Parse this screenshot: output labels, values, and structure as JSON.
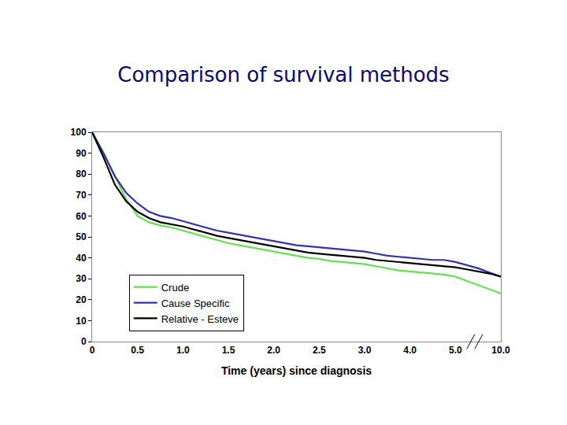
{
  "chart_data": {
    "type": "line",
    "title": "Comparison of survival methods",
    "x_label": "Time (years) since diagnosis",
    "categories": [
      "0",
      null,
      null,
      null,
      "0.5",
      null,
      null,
      null,
      "1.0",
      null,
      null,
      null,
      "1.5",
      null,
      null,
      null,
      "2.0",
      null,
      null,
      null,
      "2.5",
      null,
      null,
      null,
      "3.0",
      null,
      null,
      null,
      "4.0",
      null,
      null,
      null,
      "5.0",
      null,
      null,
      null,
      "10.0"
    ],
    "series": [
      {
        "name": "Crude",
        "color": "#66dd55",
        "values": [
          100,
          90,
          79,
          68,
          60,
          57,
          55.5,
          54.5,
          53,
          51.5,
          50,
          48.5,
          47,
          46,
          45,
          44,
          43,
          42,
          41,
          40,
          39.5,
          38.5,
          38,
          37.5,
          37,
          36,
          35,
          34,
          33.5,
          33,
          32.5,
          32,
          31,
          29,
          27,
          25,
          23
        ]
      },
      {
        "name": "Cause Specific",
        "color": "#3333aa",
        "values": [
          100,
          90,
          79,
          71,
          66,
          62,
          60,
          59,
          57.5,
          56,
          54.5,
          53,
          52,
          51,
          50,
          49,
          48,
          47,
          46,
          45.5,
          45,
          44.5,
          44,
          43.5,
          43,
          42,
          41,
          40.5,
          40,
          39.5,
          39,
          39,
          38,
          36.5,
          35,
          33,
          31
        ]
      },
      {
        "name": "Relative - Esteve",
        "color": "#000000",
        "values": [
          100,
          88,
          75,
          67,
          62,
          59,
          57,
          56,
          55,
          53.5,
          52,
          50.5,
          49.5,
          48.5,
          47.5,
          46.5,
          45.5,
          44.5,
          43.5,
          42.5,
          42,
          41.5,
          41,
          40.5,
          40,
          39,
          38.5,
          38,
          37.5,
          37,
          36.5,
          36,
          35.5,
          34.5,
          33.5,
          32.5,
          31
        ]
      }
    ],
    "ylim": [
      0,
      100
    ],
    "yticks": [
      0,
      10,
      20,
      30,
      40,
      50,
      60,
      70,
      80,
      90,
      100
    ],
    "grid": false,
    "legend": "lower left"
  }
}
